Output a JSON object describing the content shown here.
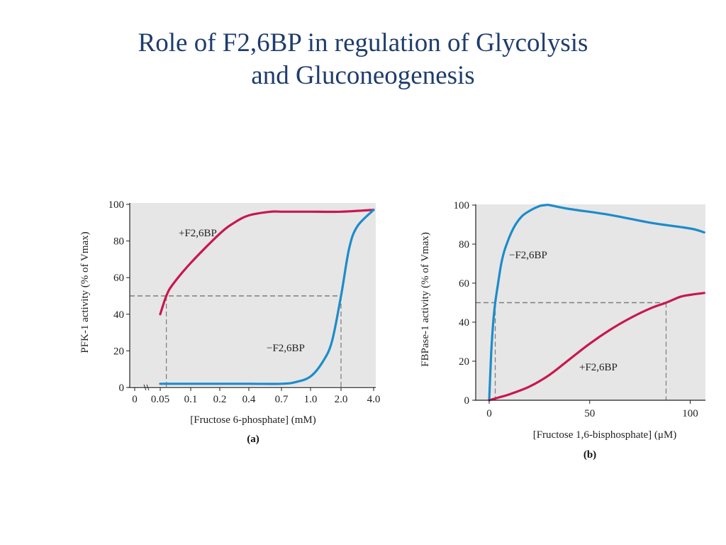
{
  "slide": {
    "title_line1": "Role of F2,6BP in regulation of Glycolysis",
    "title_line2": "and Gluconeogenesis"
  },
  "chart_data": [
    {
      "type": "line",
      "caption": "(a)",
      "xlabel": "[Fructose 6-phosphate] (mM)",
      "ylabel": "PFK-1 activity (% of Vmax)",
      "x_scale": "categorical, non-linear",
      "x_ticks": [
        "0",
        "0.05",
        "0.1",
        "0.2",
        "0.4",
        "0.7",
        "1.0",
        "2.0",
        "4.0"
      ],
      "y_ticks": [
        "0",
        "20",
        "40",
        "60",
        "80",
        "100"
      ],
      "ylim": [
        0,
        100
      ],
      "grid": false,
      "reference_lines": [
        {
          "series": "+F2,6BP",
          "x": 0.06,
          "y": 50
        },
        {
          "series": "−F2,6BP",
          "x": 2.0,
          "y": 50
        }
      ],
      "series": [
        {
          "name": "+F2,6BP",
          "color": "#c8174f",
          "x": [
            0.05,
            0.06,
            0.07,
            0.1,
            0.2,
            0.3,
            0.4,
            0.6,
            0.7,
            1.0,
            2.0,
            4.0
          ],
          "values": [
            40,
            50,
            56,
            68,
            84,
            90,
            94,
            96,
            96,
            96,
            96,
            97
          ]
        },
        {
          "name": "−F2,6BP",
          "color": "#1c8cca",
          "x": [
            0.05,
            0.1,
            0.4,
            0.7,
            0.85,
            1.0,
            1.4,
            1.7,
            2.0,
            2.5,
            3.0,
            4.0
          ],
          "values": [
            2,
            2,
            2,
            2,
            3,
            6,
            14,
            25,
            50,
            76,
            88,
            97
          ]
        }
      ]
    },
    {
      "type": "line",
      "caption": "(b)",
      "xlabel": "[Fructose 1,6-bisphosphate] (μM)",
      "ylabel": "FBPase-1 activity (% of Vmax)",
      "x_ticks": [
        "0",
        "50",
        "100"
      ],
      "y_ticks": [
        "0",
        "20",
        "40",
        "60",
        "80",
        "100"
      ],
      "xlim": [
        0,
        107
      ],
      "ylim": [
        0,
        100
      ],
      "grid": false,
      "reference_lines": [
        {
          "series": "−F2,6BP",
          "x": 3,
          "y": 50
        },
        {
          "series": "+F2,6BP",
          "x": 88,
          "y": 50
        }
      ],
      "series": [
        {
          "name": "−F2,6BP",
          "color": "#1c8cca",
          "x": [
            0,
            1,
            2,
            3,
            4,
            6,
            8,
            12,
            16,
            20,
            25,
            28,
            30,
            40,
            60,
            80,
            100,
            107
          ],
          "values": [
            0,
            24,
            40,
            50,
            57,
            70,
            78,
            88,
            94,
            97,
            99.5,
            100,
            100,
            98,
            95,
            91,
            88,
            86
          ]
        },
        {
          "name": "+F2,6BP",
          "color": "#c8174f",
          "x": [
            0,
            5,
            10,
            20,
            30,
            40,
            50,
            60,
            70,
            80,
            88,
            95,
            100,
            107
          ],
          "values": [
            0,
            1.5,
            3,
            7,
            13,
            21,
            29,
            36,
            42,
            47,
            50,
            53,
            54,
            55
          ]
        }
      ]
    }
  ],
  "legend_labels": {
    "a_plus": "+F2,6BP",
    "a_minus": "−F2,6BP",
    "b_minus": "−F2,6BP",
    "b_plus": "+F2,6BP"
  }
}
